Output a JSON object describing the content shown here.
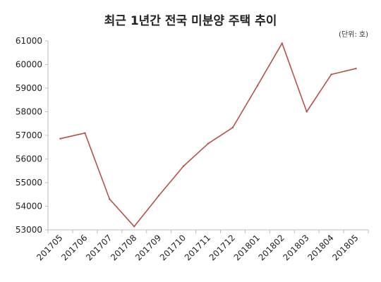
{
  "chart_data": {
    "type": "line",
    "title": "최근 1년간 전국 미분양 주택 추이",
    "unit_note": "(단위: 호)",
    "xlabel": "",
    "ylabel": "",
    "categories": [
      "201705",
      "201706",
      "201707",
      "201708",
      "201709",
      "201710",
      "201711",
      "201712",
      "201801",
      "201802",
      "201803",
      "201804",
      "201805"
    ],
    "series": [
      {
        "values": [
          56860,
          57100,
          54300,
          53140,
          54450,
          55700,
          56650,
          57330,
          59100,
          60900,
          58000,
          59580,
          59830
        ]
      }
    ],
    "yticks": [
      "53000",
      "54000",
      "55000",
      "56000",
      "57000",
      "58000",
      "59000",
      "60000",
      "61000"
    ],
    "ylim": [
      53000,
      61000
    ],
    "grid": false,
    "legend": "none",
    "line_color": "#b5524a"
  }
}
